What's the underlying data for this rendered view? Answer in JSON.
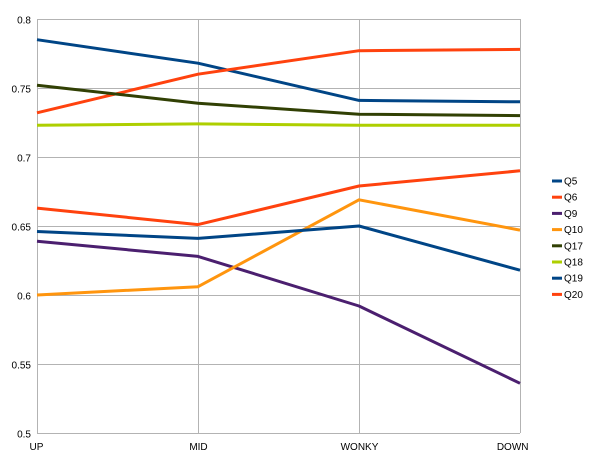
{
  "chart_data": {
    "type": "line",
    "title": "",
    "xlabel": "",
    "ylabel": "",
    "categories": [
      "UP",
      "MID",
      "WONKY",
      "DOWN"
    ],
    "ylim": [
      0.5,
      0.8
    ],
    "yticks": [
      0.5,
      0.55,
      0.6,
      0.65,
      0.7,
      0.75,
      0.8
    ],
    "ytick_labels": [
      "0.5",
      "0.55",
      "0.6",
      "0.65",
      "0.7",
      "0.75",
      "0.8"
    ],
    "grid": "horizontal and vertical",
    "legend_position": "right",
    "series": [
      {
        "name": "Q5",
        "color": "#004586",
        "values": [
          0.785,
          0.768,
          0.741,
          0.74
        ]
      },
      {
        "name": "Q6",
        "color": "#ff420e",
        "values": [
          0.732,
          0.76,
          0.777,
          0.778
        ]
      },
      {
        "name": "Q9",
        "color": "#4b1f6f",
        "values": [
          0.639,
          0.628,
          0.592,
          0.536
        ]
      },
      {
        "name": "Q10",
        "color": "#ff950e",
        "values": [
          0.6,
          0.606,
          0.669,
          0.647
        ]
      },
      {
        "name": "Q17",
        "color": "#314004",
        "values": [
          0.752,
          0.739,
          0.731,
          0.73
        ]
      },
      {
        "name": "Q18",
        "color": "#aecf00",
        "values": [
          0.723,
          0.724,
          0.723,
          0.723
        ]
      },
      {
        "name": "Q19",
        "color": "#004586",
        "values": [
          0.646,
          0.641,
          0.65,
          0.618
        ]
      },
      {
        "name": "Q20",
        "color": "#ff420e",
        "values": [
          0.663,
          0.651,
          0.679,
          0.69
        ]
      }
    ]
  }
}
